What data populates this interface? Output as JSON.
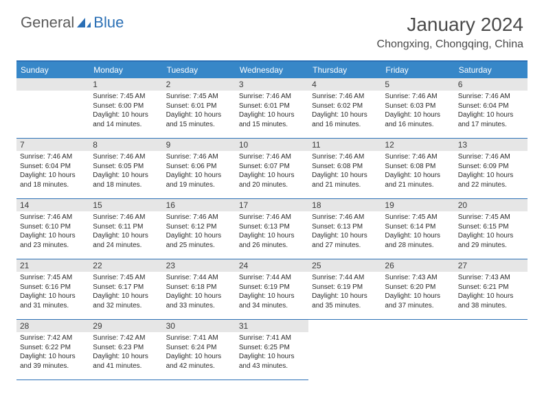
{
  "brand": {
    "part1": "General",
    "part2": "Blue"
  },
  "title": "January 2024",
  "location": "Chongxing, Chongqing, China",
  "colors": {
    "header_bar": "#3787c8",
    "accent_line": "#2a6fb5",
    "daynum_bg": "#e6e6e6",
    "text_dark": "#2a2a2a",
    "text_muted": "#5a5a5a"
  },
  "weekdays": [
    "Sunday",
    "Monday",
    "Tuesday",
    "Wednesday",
    "Thursday",
    "Friday",
    "Saturday"
  ],
  "start_blank": 1,
  "days": [
    {
      "n": 1,
      "sr": "7:45 AM",
      "ss": "6:00 PM",
      "dl": "10 hours and 14 minutes."
    },
    {
      "n": 2,
      "sr": "7:45 AM",
      "ss": "6:01 PM",
      "dl": "10 hours and 15 minutes."
    },
    {
      "n": 3,
      "sr": "7:46 AM",
      "ss": "6:01 PM",
      "dl": "10 hours and 15 minutes."
    },
    {
      "n": 4,
      "sr": "7:46 AM",
      "ss": "6:02 PM",
      "dl": "10 hours and 16 minutes."
    },
    {
      "n": 5,
      "sr": "7:46 AM",
      "ss": "6:03 PM",
      "dl": "10 hours and 16 minutes."
    },
    {
      "n": 6,
      "sr": "7:46 AM",
      "ss": "6:04 PM",
      "dl": "10 hours and 17 minutes."
    },
    {
      "n": 7,
      "sr": "7:46 AM",
      "ss": "6:04 PM",
      "dl": "10 hours and 18 minutes."
    },
    {
      "n": 8,
      "sr": "7:46 AM",
      "ss": "6:05 PM",
      "dl": "10 hours and 18 minutes."
    },
    {
      "n": 9,
      "sr": "7:46 AM",
      "ss": "6:06 PM",
      "dl": "10 hours and 19 minutes."
    },
    {
      "n": 10,
      "sr": "7:46 AM",
      "ss": "6:07 PM",
      "dl": "10 hours and 20 minutes."
    },
    {
      "n": 11,
      "sr": "7:46 AM",
      "ss": "6:08 PM",
      "dl": "10 hours and 21 minutes."
    },
    {
      "n": 12,
      "sr": "7:46 AM",
      "ss": "6:08 PM",
      "dl": "10 hours and 21 minutes."
    },
    {
      "n": 13,
      "sr": "7:46 AM",
      "ss": "6:09 PM",
      "dl": "10 hours and 22 minutes."
    },
    {
      "n": 14,
      "sr": "7:46 AM",
      "ss": "6:10 PM",
      "dl": "10 hours and 23 minutes."
    },
    {
      "n": 15,
      "sr": "7:46 AM",
      "ss": "6:11 PM",
      "dl": "10 hours and 24 minutes."
    },
    {
      "n": 16,
      "sr": "7:46 AM",
      "ss": "6:12 PM",
      "dl": "10 hours and 25 minutes."
    },
    {
      "n": 17,
      "sr": "7:46 AM",
      "ss": "6:13 PM",
      "dl": "10 hours and 26 minutes."
    },
    {
      "n": 18,
      "sr": "7:46 AM",
      "ss": "6:13 PM",
      "dl": "10 hours and 27 minutes."
    },
    {
      "n": 19,
      "sr": "7:45 AM",
      "ss": "6:14 PM",
      "dl": "10 hours and 28 minutes."
    },
    {
      "n": 20,
      "sr": "7:45 AM",
      "ss": "6:15 PM",
      "dl": "10 hours and 29 minutes."
    },
    {
      "n": 21,
      "sr": "7:45 AM",
      "ss": "6:16 PM",
      "dl": "10 hours and 31 minutes."
    },
    {
      "n": 22,
      "sr": "7:45 AM",
      "ss": "6:17 PM",
      "dl": "10 hours and 32 minutes."
    },
    {
      "n": 23,
      "sr": "7:44 AM",
      "ss": "6:18 PM",
      "dl": "10 hours and 33 minutes."
    },
    {
      "n": 24,
      "sr": "7:44 AM",
      "ss": "6:19 PM",
      "dl": "10 hours and 34 minutes."
    },
    {
      "n": 25,
      "sr": "7:44 AM",
      "ss": "6:19 PM",
      "dl": "10 hours and 35 minutes."
    },
    {
      "n": 26,
      "sr": "7:43 AM",
      "ss": "6:20 PM",
      "dl": "10 hours and 37 minutes."
    },
    {
      "n": 27,
      "sr": "7:43 AM",
      "ss": "6:21 PM",
      "dl": "10 hours and 38 minutes."
    },
    {
      "n": 28,
      "sr": "7:42 AM",
      "ss": "6:22 PM",
      "dl": "10 hours and 39 minutes."
    },
    {
      "n": 29,
      "sr": "7:42 AM",
      "ss": "6:23 PM",
      "dl": "10 hours and 41 minutes."
    },
    {
      "n": 30,
      "sr": "7:41 AM",
      "ss": "6:24 PM",
      "dl": "10 hours and 42 minutes."
    },
    {
      "n": 31,
      "sr": "7:41 AM",
      "ss": "6:25 PM",
      "dl": "10 hours and 43 minutes."
    }
  ],
  "labels": {
    "sunrise": "Sunrise:",
    "sunset": "Sunset:",
    "daylight": "Daylight:"
  }
}
